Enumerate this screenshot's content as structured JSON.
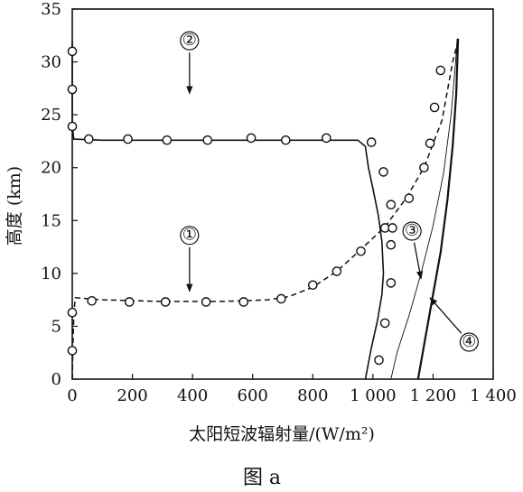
{
  "chart_data": {
    "type": "line",
    "caption": "图 a",
    "xlabel": "太阳短波辐射量/(W/m²)",
    "ylabel": "高度 (km)",
    "xlim": [
      0,
      1400
    ],
    "ylim": [
      0,
      35
    ],
    "x_ticks": [
      0,
      200,
      400,
      600,
      800,
      1000,
      1200,
      1400
    ],
    "x_tick_labels": [
      "0",
      "200",
      "400",
      "600",
      "800",
      "1 000",
      "1 200",
      "1 400"
    ],
    "y_ticks": [
      0,
      5,
      10,
      15,
      20,
      25,
      30,
      35
    ],
    "y_tick_labels": [
      "0",
      "5",
      "10",
      "15",
      "20",
      "25",
      "30",
      "35"
    ],
    "grid": false,
    "series": [
      {
        "name": "①",
        "line_style": "dashed",
        "label_at": [
          390,
          13.6
        ],
        "arrow_to": [
          390,
          8.3
        ],
        "line": [
          [
            0,
            0
          ],
          [
            2,
            3
          ],
          [
            5,
            6
          ],
          [
            10,
            7.7
          ],
          [
            100,
            7.5
          ],
          [
            300,
            7.35
          ],
          [
            500,
            7.35
          ],
          [
            650,
            7.5
          ],
          [
            720,
            7.8
          ],
          [
            800,
            8.7
          ],
          [
            880,
            10.2
          ],
          [
            950,
            12.0
          ],
          [
            1040,
            14.4
          ],
          [
            1110,
            17.1
          ],
          [
            1170,
            20.0
          ],
          [
            1230,
            24.5
          ],
          [
            1265,
            30.0
          ],
          [
            1285,
            32.2
          ]
        ],
        "points": [
          [
            0,
            2.7
          ],
          [
            0,
            6.3
          ],
          [
            65,
            7.4
          ],
          [
            190,
            7.3
          ],
          [
            310,
            7.3
          ],
          [
            445,
            7.3
          ],
          [
            570,
            7.3
          ],
          [
            695,
            7.6
          ],
          [
            800,
            8.9
          ],
          [
            880,
            10.2
          ],
          [
            960,
            12.1
          ],
          [
            1040,
            14.3
          ],
          [
            1120,
            17.1
          ],
          [
            1170,
            20.0
          ],
          [
            1190,
            22.3
          ],
          [
            1205,
            25.7
          ],
          [
            1225,
            29.2
          ]
        ]
      },
      {
        "name": "②",
        "line_style": "solid",
        "label_at": [
          390,
          32.0
        ],
        "arrow_to": [
          390,
          27.0
        ],
        "line": [
          [
            0,
            32.0
          ],
          [
            0,
            24.0
          ],
          [
            5,
            22.7
          ],
          [
            100,
            22.6
          ],
          [
            400,
            22.6
          ],
          [
            800,
            22.6
          ],
          [
            950,
            22.6
          ],
          [
            975,
            22.0
          ],
          [
            985,
            20.0
          ],
          [
            1000,
            18.0
          ],
          [
            1018,
            15.5
          ],
          [
            1030,
            13.0
          ],
          [
            1035,
            10.0
          ],
          [
            1030,
            8.0
          ],
          [
            1015,
            5.5
          ],
          [
            995,
            3.0
          ],
          [
            975,
            0.0
          ]
        ],
        "points": [
          [
            0,
            31.0
          ],
          [
            0,
            27.4
          ],
          [
            0,
            23.9
          ],
          [
            55,
            22.7
          ],
          [
            185,
            22.7
          ],
          [
            315,
            22.6
          ],
          [
            450,
            22.6
          ],
          [
            595,
            22.8
          ],
          [
            710,
            22.6
          ],
          [
            845,
            22.8
          ],
          [
            995,
            22.4
          ],
          [
            1035,
            19.6
          ],
          [
            1060,
            16.5
          ],
          [
            1065,
            14.3
          ],
          [
            1060,
            12.7
          ],
          [
            1060,
            9.1
          ],
          [
            1040,
            5.3
          ],
          [
            1020,
            1.8
          ]
        ]
      },
      {
        "name": "③",
        "line_style": "solid-thin",
        "label_at": [
          1130,
          14.0
        ],
        "arrow_to": [
          1160,
          9.5
        ],
        "line": [
          [
            1060,
            0
          ],
          [
            1080,
            2.5
          ],
          [
            1120,
            6
          ],
          [
            1160,
            10
          ],
          [
            1200,
            14.5
          ],
          [
            1235,
            19.5
          ],
          [
            1260,
            25
          ],
          [
            1275,
            30
          ],
          [
            1280,
            32.2
          ]
        ]
      },
      {
        "name": "④",
        "line_style": "solid-thick",
        "label_at": [
          1320,
          3.5
        ],
        "arrow_to": [
          1190,
          7.7
        ],
        "line": [
          [
            1150,
            0
          ],
          [
            1175,
            4
          ],
          [
            1200,
            8
          ],
          [
            1225,
            12
          ],
          [
            1248,
            17
          ],
          [
            1265,
            22
          ],
          [
            1277,
            27
          ],
          [
            1283,
            32.2
          ]
        ]
      }
    ]
  }
}
